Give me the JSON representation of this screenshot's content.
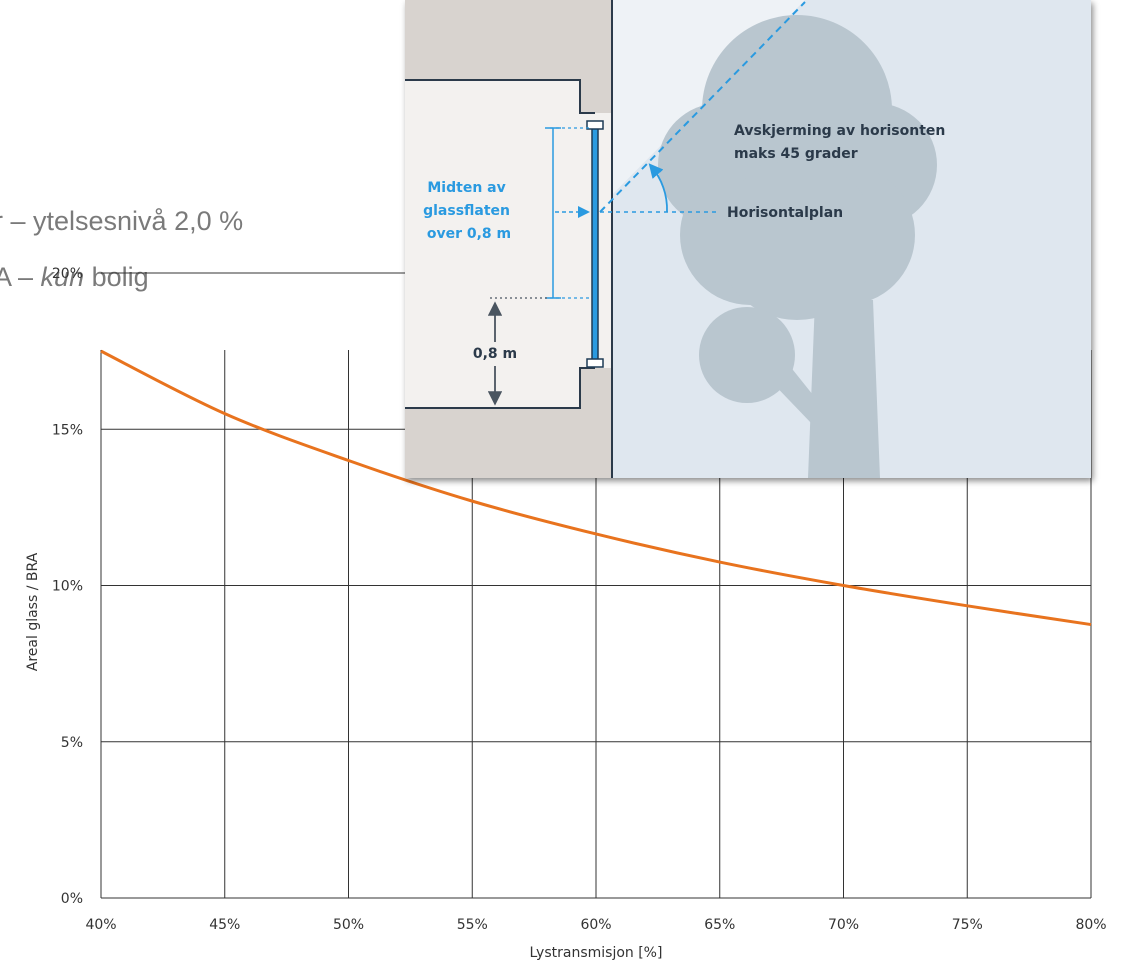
{
  "title": {
    "line1": "r – ytelsesnivå 2,0 %",
    "line2_prefix": "A – ",
    "line2_italic": "kun",
    "line2_suffix": " bolig"
  },
  "chart_data": {
    "type": "line",
    "xlabel": "Lystransmisjon [%]",
    "ylabel": "Areal glass / BRA",
    "x_ticks": [
      "40%",
      "45%",
      "50%",
      "55%",
      "60%",
      "65%",
      "70%",
      "75%",
      "80%"
    ],
    "y_ticks": [
      "0%",
      "5%",
      "10%",
      "15%",
      "20%"
    ],
    "xlim": [
      40,
      80
    ],
    "ylim": [
      0,
      20
    ],
    "grid": true,
    "series": [
      {
        "x": [
          40,
          45,
          50,
          55,
          60,
          65,
          70,
          75,
          80
        ],
        "y": [
          17.5,
          15.5,
          14.0,
          12.7,
          11.65,
          10.75,
          10.0,
          9.35,
          8.75
        ]
      }
    ]
  },
  "colors": {
    "line": "#e8731e",
    "grid": "#333333",
    "sky": "#dfe7ef",
    "tree": "#b9c6cf",
    "wall": "#d8d3cf",
    "interior": "#f3f1ef",
    "accent_blue": "#2a9ae0",
    "dark_text": "#2b3a4a"
  },
  "inset": {
    "window_label": [
      "Midten av",
      "glassflaten",
      "over 0,8 m"
    ],
    "height_label": "0,8 m",
    "horizon_label": "Horisontalplan",
    "shading_label": [
      "Avskjerming av horisonten",
      "maks 45 grader"
    ]
  }
}
